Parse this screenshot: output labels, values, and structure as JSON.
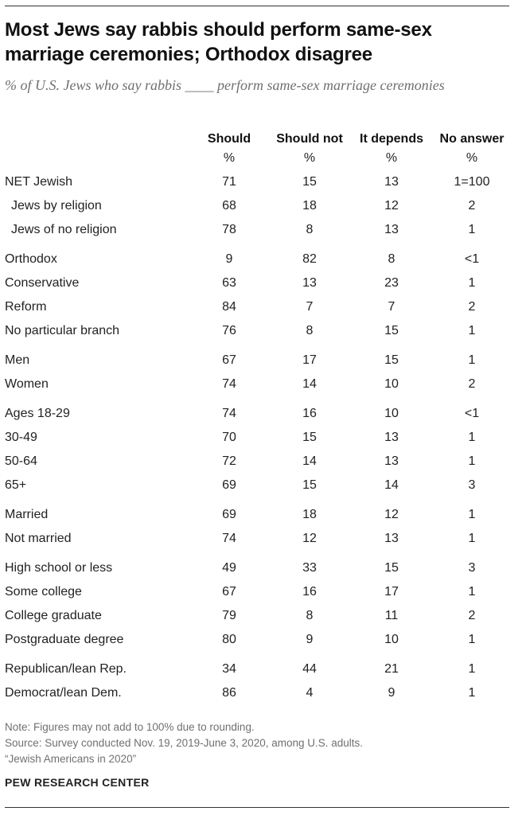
{
  "header": {
    "title": "Most Jews say rabbis should perform same-sex marriage ceremonies; Orthodox disagree",
    "subtitle": "% of U.S. Jews who say rabbis ____ perform same-sex marriage ceremonies"
  },
  "chart_data": {
    "type": "table",
    "columns": [
      "Should",
      "Should not",
      "It depends",
      "No answer"
    ],
    "column_units": [
      "%",
      "%",
      "%",
      "%"
    ],
    "rows": [
      {
        "label": "NET Jewish",
        "values": [
          "71",
          "15",
          "13",
          "1=100"
        ],
        "group": 0,
        "indent": false
      },
      {
        "label": "Jews by religion",
        "values": [
          "68",
          "18",
          "12",
          "2"
        ],
        "group": 0,
        "indent": true
      },
      {
        "label": "Jews of no religion",
        "values": [
          "78",
          "8",
          "13",
          "1"
        ],
        "group": 0,
        "indent": true
      },
      {
        "label": "Orthodox",
        "values": [
          "9",
          "82",
          "8",
          "<1"
        ],
        "group": 1,
        "indent": false
      },
      {
        "label": "Conservative",
        "values": [
          "63",
          "13",
          "23",
          "1"
        ],
        "group": 1,
        "indent": false
      },
      {
        "label": "Reform",
        "values": [
          "84",
          "7",
          "7",
          "2"
        ],
        "group": 1,
        "indent": false
      },
      {
        "label": "No particular branch",
        "values": [
          "76",
          "8",
          "15",
          "1"
        ],
        "group": 1,
        "indent": false
      },
      {
        "label": "Men",
        "values": [
          "67",
          "17",
          "15",
          "1"
        ],
        "group": 2,
        "indent": false
      },
      {
        "label": "Women",
        "values": [
          "74",
          "14",
          "10",
          "2"
        ],
        "group": 2,
        "indent": false
      },
      {
        "label": "Ages 18-29",
        "values": [
          "74",
          "16",
          "10",
          "<1"
        ],
        "group": 3,
        "indent": false
      },
      {
        "label": "30-49",
        "values": [
          "70",
          "15",
          "13",
          "1"
        ],
        "group": 3,
        "indent": false
      },
      {
        "label": "50-64",
        "values": [
          "72",
          "14",
          "13",
          "1"
        ],
        "group": 3,
        "indent": false
      },
      {
        "label": "65+",
        "values": [
          "69",
          "15",
          "14",
          "3"
        ],
        "group": 3,
        "indent": false
      },
      {
        "label": "Married",
        "values": [
          "69",
          "18",
          "12",
          "1"
        ],
        "group": 4,
        "indent": false
      },
      {
        "label": "Not married",
        "values": [
          "74",
          "12",
          "13",
          "1"
        ],
        "group": 4,
        "indent": false
      },
      {
        "label": "High school or less",
        "values": [
          "49",
          "33",
          "15",
          "3"
        ],
        "group": 5,
        "indent": false
      },
      {
        "label": "Some college",
        "values": [
          "67",
          "16",
          "17",
          "1"
        ],
        "group": 5,
        "indent": false
      },
      {
        "label": "College graduate",
        "values": [
          "79",
          "8",
          "11",
          "2"
        ],
        "group": 5,
        "indent": false
      },
      {
        "label": "Postgraduate degree",
        "values": [
          "80",
          "9",
          "10",
          "1"
        ],
        "group": 5,
        "indent": false
      },
      {
        "label": "Republican/lean Rep.",
        "values": [
          "34",
          "44",
          "21",
          "1"
        ],
        "group": 6,
        "indent": false
      },
      {
        "label": "Democrat/lean Dem.",
        "values": [
          "86",
          "4",
          "9",
          "1"
        ],
        "group": 6,
        "indent": false
      }
    ]
  },
  "footer": {
    "note": "Note: Figures may not add to 100% due to rounding.",
    "source_line1": "Source: Survey conducted Nov. 19, 2019-June 3, 2020, among U.S. adults.",
    "source_line2": "“Jewish Americans in 2020”",
    "organization": "PEW RESEARCH CENTER"
  }
}
